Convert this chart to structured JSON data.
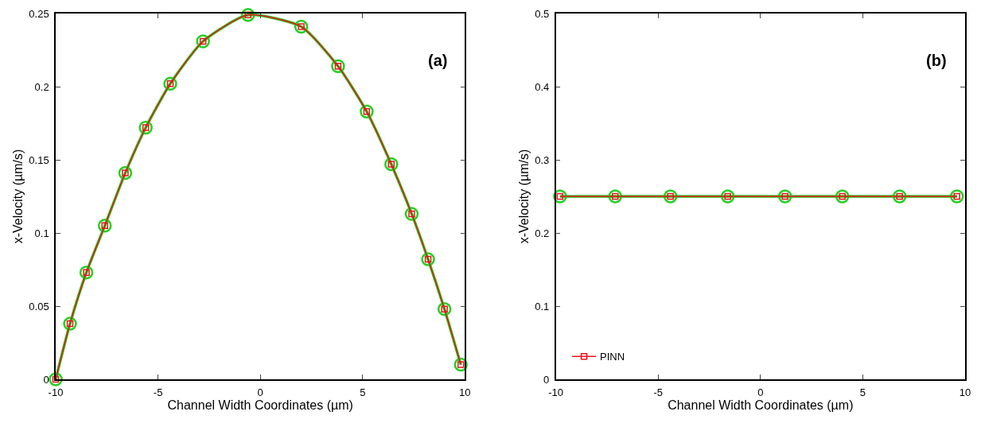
{
  "chart_data": [
    {
      "type": "line",
      "xlabel": "Channel Width Coordinates (µm)",
      "ylabel": "x-Velocity (µm/s)",
      "annotations": [
        "(a)"
      ],
      "xlim": [
        -10,
        10
      ],
      "xticks": [
        -10,
        -5,
        0,
        5,
        10
      ],
      "ylim": [
        0,
        0.25
      ],
      "yticks": [
        0,
        0.05,
        0.1,
        0.15,
        0.2,
        0.25
      ],
      "legend": false,
      "series": [
        {
          "color": "#e8141c",
          "marker": "square",
          "x": [
            -10,
            -9.3,
            -8.5,
            -7.6,
            -6.6,
            -5.6,
            -4.4,
            -2.8,
            -0.6,
            2.0,
            3.8,
            5.2,
            6.4,
            7.4,
            8.2,
            9.0,
            9.8
          ],
          "values": [
            0,
            0.038,
            0.073,
            0.105,
            0.141,
            0.172,
            0.202,
            0.231,
            0.249,
            0.241,
            0.214,
            0.183,
            0.147,
            0.113,
            0.082,
            0.048,
            0.01
          ]
        },
        {
          "color": "#22d022",
          "marker": "circle",
          "x": [
            -10,
            -9.3,
            -8.5,
            -7.6,
            -6.6,
            -5.6,
            -4.4,
            -2.8,
            -0.6,
            2.0,
            3.8,
            5.2,
            6.4,
            7.4,
            8.2,
            9.0,
            9.8
          ],
          "values": [
            0,
            0.038,
            0.073,
            0.105,
            0.141,
            0.172,
            0.202,
            0.231,
            0.249,
            0.241,
            0.214,
            0.183,
            0.147,
            0.113,
            0.082,
            0.048,
            0.01
          ]
        }
      ]
    },
    {
      "type": "line",
      "xlabel": "Channel Width Coordinates (µm)",
      "ylabel": "x-Velocity (µm/s)",
      "annotations": [
        "(b)"
      ],
      "xlim": [
        -10,
        10
      ],
      "xticks": [
        -10,
        -5,
        0,
        5,
        10
      ],
      "ylim": [
        0,
        0.5
      ],
      "yticks": [
        0,
        0.1,
        0.2,
        0.3,
        0.4,
        0.5
      ],
      "legend": "bottom left",
      "series": [
        {
          "name": "PINN",
          "color": "#e8141c",
          "marker": "square",
          "x": [
            -9.8,
            -7.1,
            -4.4,
            -1.6,
            1.2,
            4.0,
            6.8,
            9.6
          ],
          "values": [
            0.25,
            0.25,
            0.25,
            0.25,
            0.25,
            0.25,
            0.25,
            0.25
          ]
        },
        {
          "color": "#22d022",
          "marker": "circle",
          "x": [
            -9.8,
            -7.1,
            -4.4,
            -1.6,
            1.2,
            4.0,
            6.8,
            9.6
          ],
          "values": [
            0.25,
            0.25,
            0.25,
            0.25,
            0.25,
            0.25,
            0.25,
            0.25
          ]
        }
      ]
    }
  ]
}
